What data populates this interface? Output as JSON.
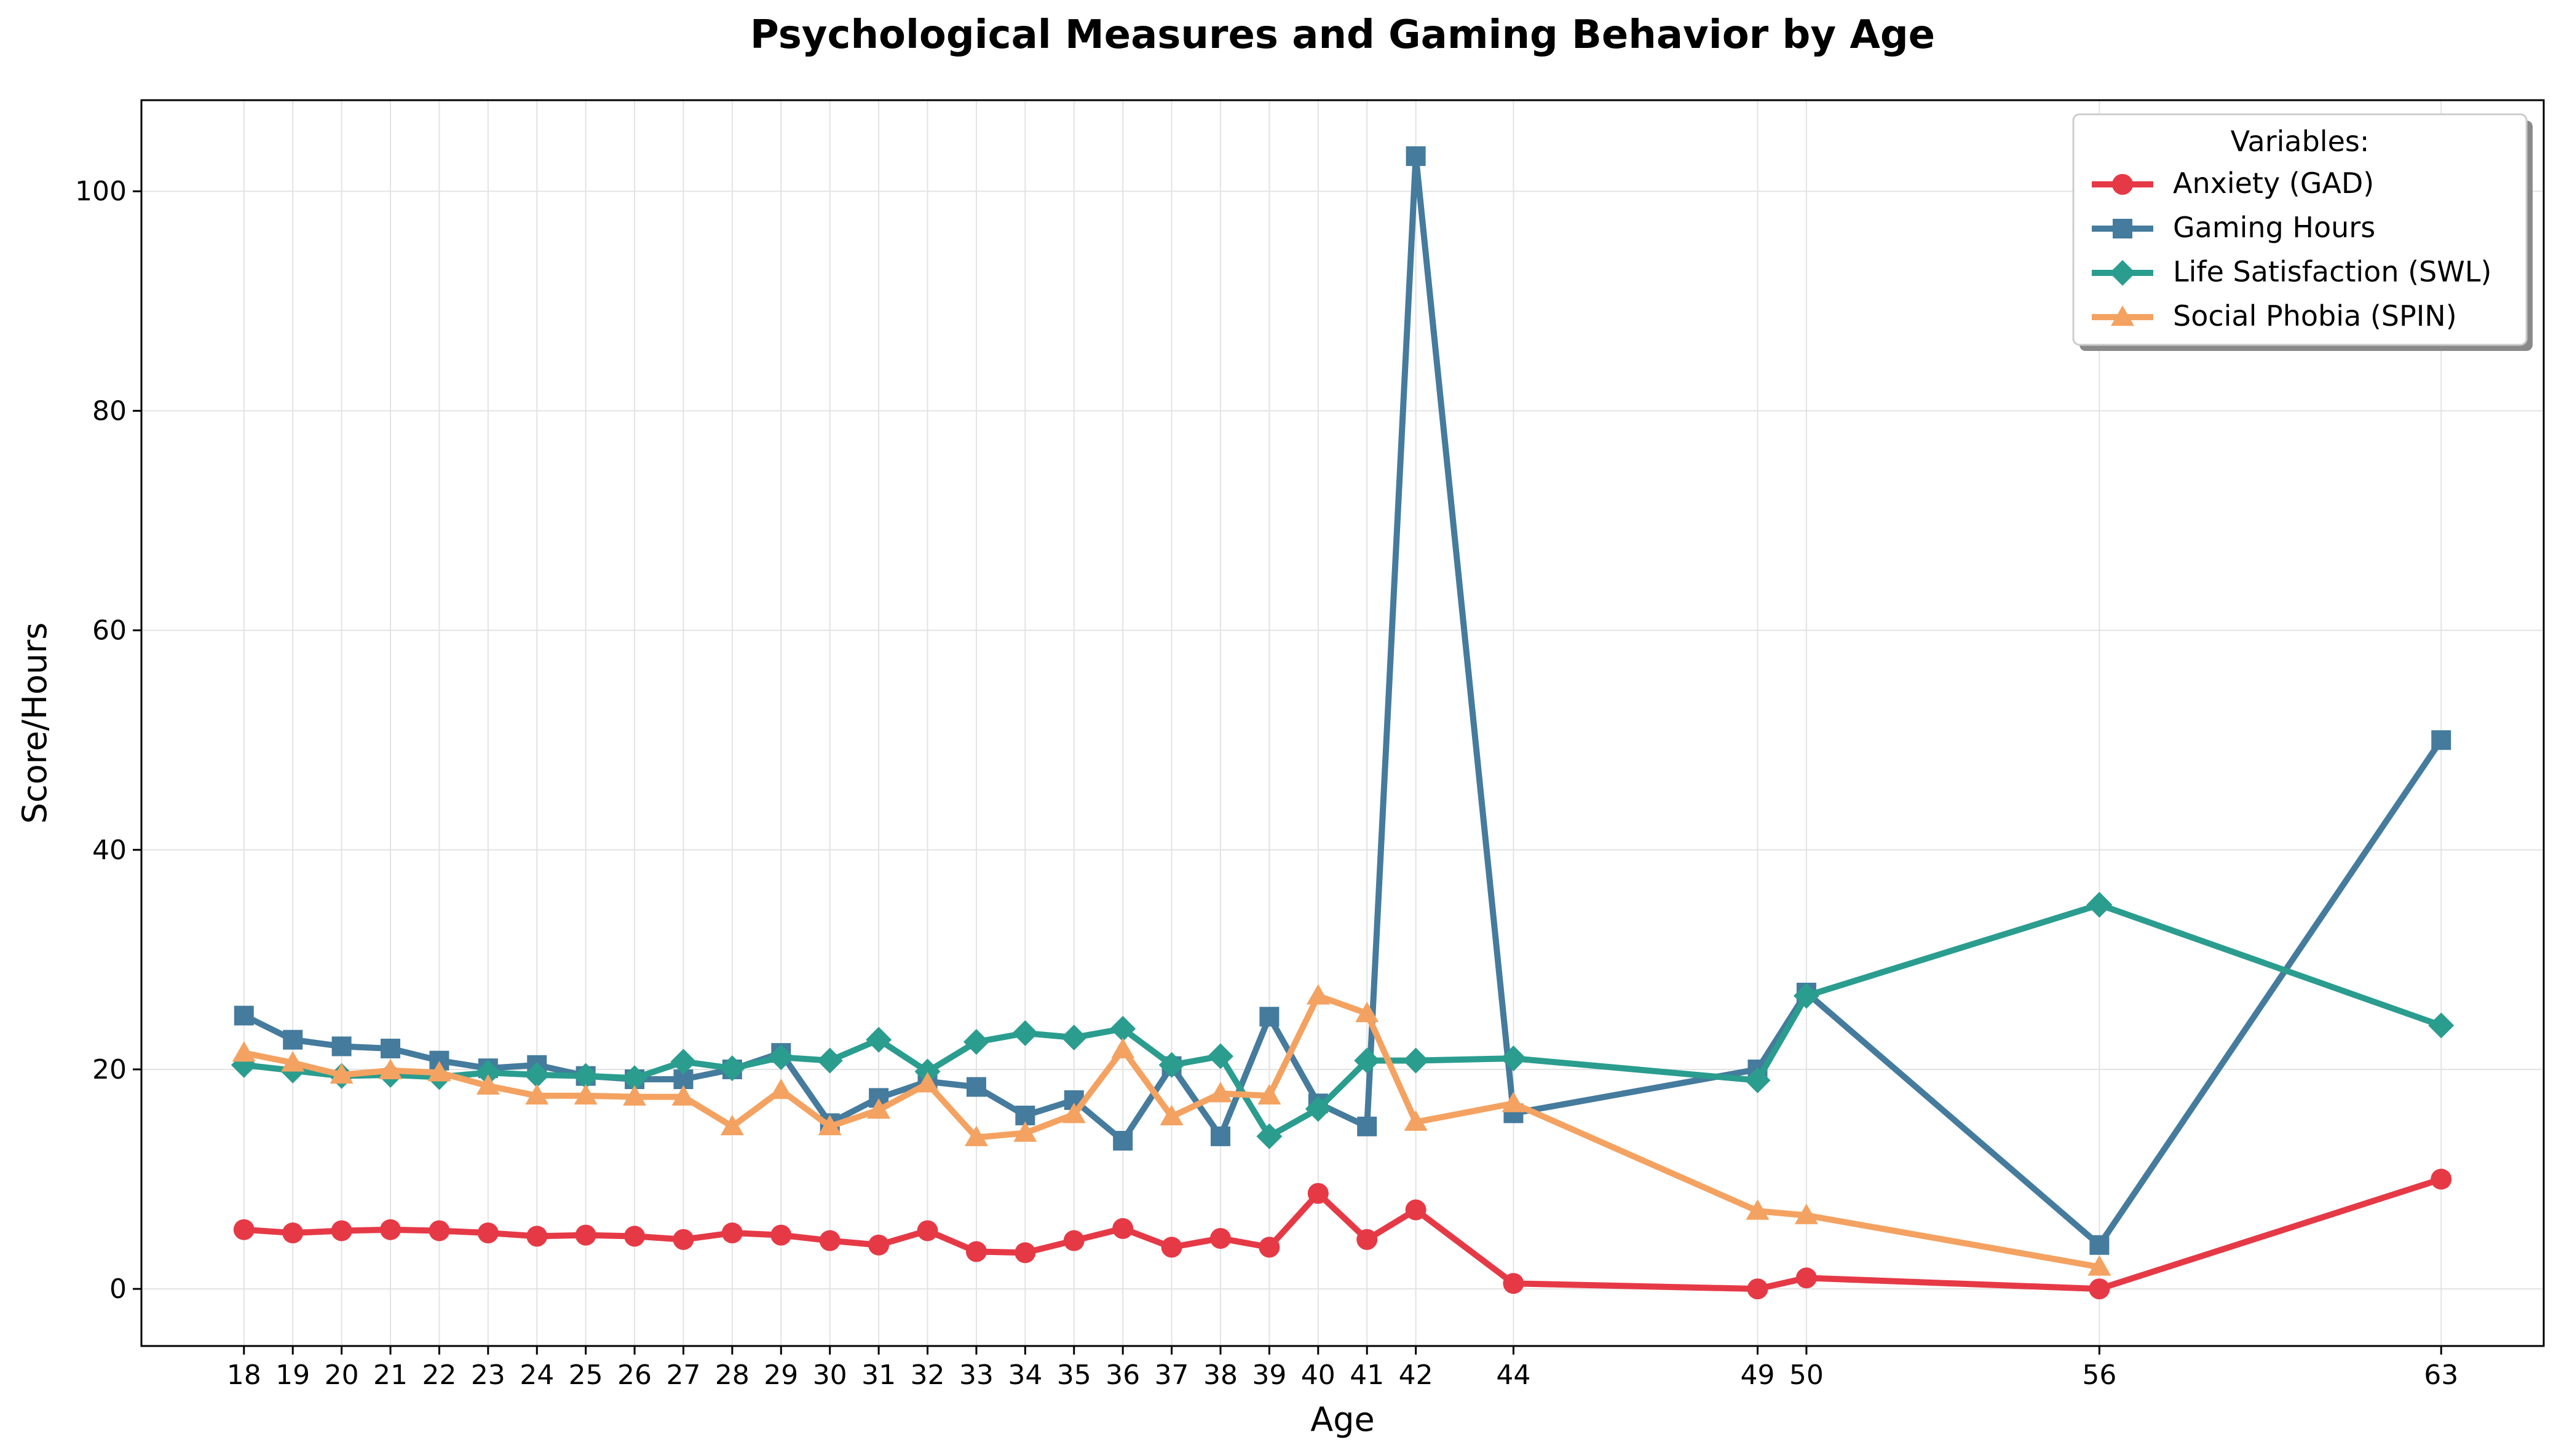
{
  "chart_data": {
    "type": "line",
    "title": "Psychological Measures and Gaming Behavior by Age",
    "xlabel": "Age",
    "ylabel": "Score/Hours",
    "xlim": [
      15.9,
      65.1
    ],
    "ylim": [
      -5.2,
      108.3
    ],
    "x_ticks": [
      18,
      19,
      20,
      21,
      22,
      23,
      24,
      25,
      26,
      27,
      28,
      29,
      30,
      31,
      32,
      33,
      34,
      35,
      36,
      37,
      38,
      39,
      40,
      41,
      42,
      44,
      49,
      50,
      56,
      63
    ],
    "y_ticks": [
      0,
      20,
      40,
      60,
      80,
      100
    ],
    "grid": true,
    "legend": {
      "title": "Variables:",
      "position": "top-right"
    },
    "series": [
      {
        "name": "Anxiety (GAD)",
        "color": "#e63946",
        "marker": "circle",
        "x": [
          18,
          19,
          20,
          21,
          22,
          23,
          24,
          25,
          26,
          27,
          28,
          29,
          30,
          31,
          32,
          33,
          34,
          35,
          36,
          37,
          38,
          39,
          40,
          41,
          42,
          44,
          49,
          50,
          56,
          63
        ],
        "values": [
          5.4,
          5.1,
          5.3,
          5.4,
          5.3,
          5.1,
          4.8,
          4.9,
          4.8,
          4.5,
          5.1,
          4.9,
          4.4,
          4.0,
          5.3,
          3.4,
          3.3,
          4.4,
          5.5,
          3.8,
          4.6,
          3.8,
          8.7,
          4.5,
          7.2,
          0.5,
          0.0,
          1.0,
          0.0,
          10.0
        ]
      },
      {
        "name": "Gaming Hours",
        "color": "#457b9d",
        "marker": "square",
        "x": [
          18,
          19,
          20,
          21,
          22,
          23,
          24,
          25,
          26,
          27,
          28,
          29,
          30,
          31,
          32,
          33,
          34,
          35,
          36,
          37,
          38,
          39,
          40,
          41,
          42,
          44,
          49,
          50,
          56,
          63
        ],
        "values": [
          24.9,
          22.7,
          22.1,
          21.9,
          20.8,
          20.1,
          20.4,
          19.4,
          19.1,
          19.1,
          20.0,
          21.5,
          15.1,
          17.4,
          18.9,
          18.4,
          15.8,
          17.2,
          13.5,
          20.3,
          13.9,
          24.8,
          16.9,
          14.8,
          103.2,
          16.0,
          20.0,
          27.0,
          4.0,
          50.0
        ]
      },
      {
        "name": "Life Satisfaction (SWL)",
        "color": "#2a9d8f",
        "marker": "diamond",
        "x": [
          18,
          19,
          20,
          21,
          22,
          23,
          24,
          25,
          26,
          27,
          28,
          29,
          30,
          31,
          32,
          33,
          34,
          35,
          36,
          37,
          38,
          39,
          40,
          41,
          42,
          44,
          49,
          50,
          56,
          63
        ],
        "values": [
          20.4,
          19.9,
          19.4,
          19.5,
          19.3,
          19.7,
          19.5,
          19.4,
          19.2,
          20.7,
          20.1,
          21.1,
          20.8,
          22.7,
          19.8,
          22.5,
          23.3,
          22.9,
          23.7,
          20.4,
          21.2,
          13.9,
          16.4,
          20.8,
          20.8,
          21.0,
          19.0,
          26.7,
          35.0,
          24.0
        ]
      },
      {
        "name": "Social Phobia (SPIN)",
        "color": "#f4a261",
        "marker": "triangle",
        "x": [
          18,
          19,
          20,
          21,
          22,
          23,
          24,
          25,
          26,
          27,
          28,
          29,
          30,
          31,
          32,
          33,
          34,
          35,
          36,
          37,
          38,
          39,
          40,
          41,
          42,
          44,
          49,
          50,
          56,
          63
        ],
        "values": [
          21.5,
          20.6,
          19.5,
          19.9,
          19.7,
          18.5,
          17.6,
          17.6,
          17.5,
          17.5,
          14.8,
          18.1,
          14.8,
          16.3,
          18.7,
          13.8,
          14.2,
          15.9,
          21.8,
          15.7,
          17.8,
          17.6,
          26.7,
          25.1,
          15.2,
          16.9,
          7.1,
          6.7,
          2.0,
          null
        ]
      }
    ]
  }
}
